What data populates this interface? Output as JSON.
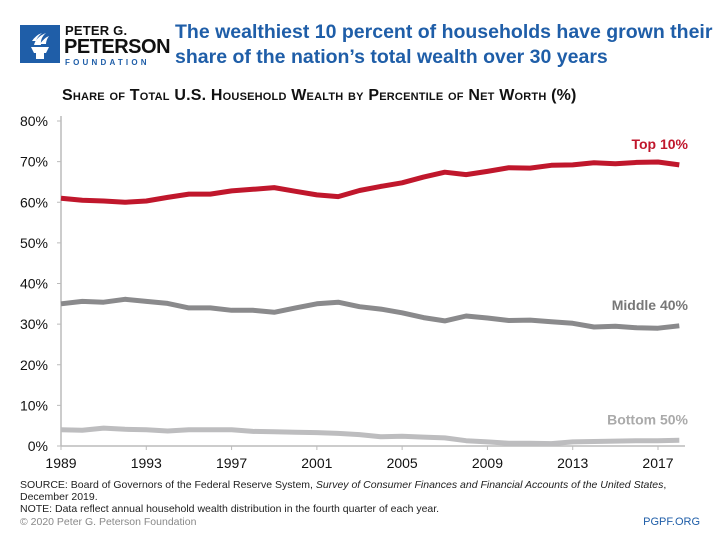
{
  "logo": {
    "line1": "PETER G.",
    "line2": "PETERSON",
    "line3": "FOUNDATION",
    "icon": "torch-icon",
    "color": "#1f5ea8"
  },
  "header": {
    "title": "The wealthiest 10 percent of households have grown their share of the nation’s total wealth over 30 years"
  },
  "chart_data": {
    "type": "line",
    "title": "Share of Total U.S. Household Wealth by Percentile of Net Worth (%)",
    "xlabel": "",
    "ylabel": "",
    "x": [
      1989,
      1990,
      1991,
      1992,
      1993,
      1994,
      1995,
      1996,
      1997,
      1998,
      1999,
      2000,
      2001,
      2002,
      2003,
      2004,
      2005,
      2006,
      2007,
      2008,
      2009,
      2010,
      2011,
      2012,
      2013,
      2014,
      2015,
      2016,
      2017,
      2018
    ],
    "xticks": [
      1989,
      1993,
      1997,
      2001,
      2005,
      2009,
      2013,
      2017
    ],
    "xtick_labels": [
      "1989",
      "1993",
      "1997",
      "2001",
      "2005",
      "2009",
      "2013",
      "2017"
    ],
    "yticks": [
      0,
      10,
      20,
      30,
      40,
      50,
      60,
      70,
      80
    ],
    "ytick_labels": [
      "0%",
      "10%",
      "20%",
      "30%",
      "40%",
      "50%",
      "60%",
      "70%",
      "80%"
    ],
    "ylim": [
      0,
      80
    ],
    "grid": false,
    "legend": "inline labels at right end of each line",
    "series": [
      {
        "name": "Top 10%",
        "color": "#c0172c",
        "values": [
          61,
          60.5,
          60.3,
          60,
          60.3,
          61.2,
          62,
          62,
          62.8,
          63.2,
          63.6,
          62.7,
          61.8,
          61.4,
          62.9,
          63.9,
          64.8,
          66.2,
          67.4,
          66.8,
          67.6,
          68.5,
          68.4,
          69.1,
          69.2,
          69.7,
          69.5,
          69.8,
          69.9,
          69.2
        ]
      },
      {
        "name": "Middle 40%",
        "color": "#8a8a8c",
        "values": [
          35,
          35.6,
          35.4,
          36.1,
          35.6,
          35.1,
          34,
          34,
          33.4,
          33.4,
          32.9,
          34,
          35,
          35.4,
          34.3,
          33.7,
          32.8,
          31.6,
          30.8,
          32,
          31.5,
          30.9,
          31,
          30.6,
          30.2,
          29.3,
          29.5,
          29.1,
          29,
          29.6
        ]
      },
      {
        "name": "Bottom 50%",
        "color": "#bdbdbf",
        "values": [
          4,
          3.9,
          4.4,
          4.1,
          4,
          3.7,
          4,
          4,
          4,
          3.6,
          3.5,
          3.4,
          3.3,
          3.1,
          2.8,
          2.3,
          2.4,
          2.2,
          2,
          1.3,
          1,
          0.7,
          0.7,
          0.6,
          1,
          1.1,
          1.2,
          1.3,
          1.3,
          1.4
        ]
      }
    ]
  },
  "footer": {
    "source_label": "SOURCE:",
    "source_text1": " Board of Governors of the Federal Reserve System, ",
    "source_italic": "Survey of Consumer Finances and Financial Accounts of the United States",
    "source_text2": ", December 2019.",
    "note_label": "NOTE:",
    "note_text": " Data reflect annual household wealth distribution in the fourth quarter of each year.",
    "copyright": "© 2020 Peter G. Peterson Foundation",
    "site": "PGPF.ORG"
  }
}
